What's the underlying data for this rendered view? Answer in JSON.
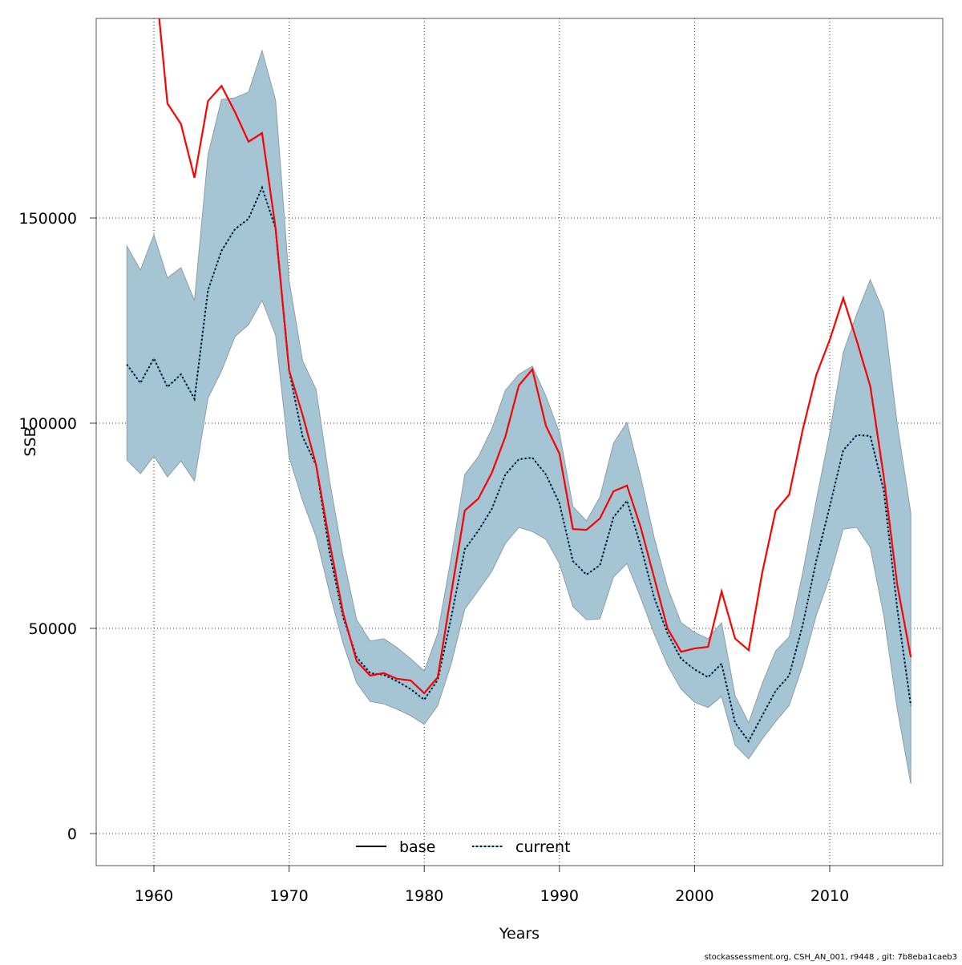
{
  "chart_data": {
    "type": "line",
    "xlabel": "Years",
    "ylabel": "SSB",
    "xlim": [
      1956,
      2018
    ],
    "ylim": [
      -7500,
      198700
    ],
    "grid": true,
    "legend_placement": "bottom",
    "x_ticks": [
      1960,
      1970,
      1980,
      1990,
      2000,
      2010
    ],
    "y_ticks": [
      0,
      50000,
      100000,
      150000
    ],
    "x_tick_labels": [
      "1960",
      "1970",
      "1980",
      "1990",
      "2000",
      "2010"
    ],
    "y_tick_labels": [
      "0",
      "50000",
      "100000",
      "150000"
    ],
    "colors": {
      "band": "#a5c4d4",
      "band_edge": "#8f9ea6",
      "base": "#ff0000",
      "current": "#000000",
      "current_under": "#6fb7dd"
    },
    "legend": [
      {
        "name": "base",
        "style": "solid"
      },
      {
        "name": "current",
        "style": "dotted"
      }
    ],
    "band": {
      "x": [
        1958,
        1959,
        1960,
        1961,
        1962,
        1963,
        1964,
        1965,
        1966,
        1967,
        1968,
        1969,
        1970,
        1971,
        1972,
        1973,
        1974,
        1975,
        1976,
        1977,
        1978,
        1979,
        1980,
        1981,
        1982,
        1983,
        1984,
        1985,
        1986,
        1987,
        1988,
        1989,
        1990,
        1991,
        1992,
        1993,
        1994,
        1995,
        1996,
        1997,
        1998,
        1999,
        2000,
        2001,
        2002,
        2003,
        2004,
        2005,
        2006,
        2007,
        2008,
        2009,
        2010,
        2011,
        2012,
        2013,
        2014,
        2015,
        2016
      ],
      "upper": [
        143200,
        137300,
        145900,
        135400,
        137900,
        129900,
        165400,
        178900,
        179300,
        180700,
        190800,
        178700,
        134800,
        115200,
        108200,
        85900,
        67400,
        52100,
        46900,
        47500,
        45300,
        42600,
        39600,
        48800,
        67400,
        87500,
        91800,
        98600,
        108000,
        111900,
        113900,
        106600,
        97700,
        79700,
        76200,
        82000,
        95100,
        100200,
        87100,
        72300,
        60000,
        51400,
        49000,
        47500,
        51400,
        33600,
        27000,
        36500,
        44500,
        47900,
        63500,
        81100,
        97700,
        117200,
        126600,
        135000,
        127000,
        99600,
        78100
      ],
      "lower": [
        91000,
        87700,
        92000,
        86900,
        90800,
        85900,
        106100,
        112700,
        121100,
        124000,
        129900,
        121500,
        91800,
        81100,
        72300,
        58600,
        46300,
        36700,
        32200,
        31600,
        30300,
        28700,
        26600,
        31200,
        41400,
        54700,
        59200,
        63900,
        70700,
        74600,
        73600,
        71700,
        65800,
        55300,
        52100,
        52300,
        62500,
        65800,
        57600,
        48800,
        41000,
        35200,
        32000,
        30700,
        33400,
        21500,
        18200,
        23000,
        27300,
        31200,
        41000,
        53100,
        62500,
        74200,
        74600,
        69700,
        53100,
        30300,
        12100
      ]
    },
    "series": [
      {
        "name": "current",
        "x": [
          1958,
          1959,
          1960,
          1961,
          1962,
          1963,
          1964,
          1965,
          1966,
          1967,
          1968,
          1969,
          1970,
          1971,
          1972,
          1973,
          1974,
          1975,
          1976,
          1977,
          1978,
          1979,
          1980,
          1981,
          1982,
          1983,
          1984,
          1985,
          1986,
          1987,
          1988,
          1989,
          1990,
          1991,
          1992,
          1993,
          1994,
          1995,
          1996,
          1997,
          1998,
          1999,
          2000,
          2001,
          2002,
          2003,
          2004,
          2005,
          2006,
          2007,
          2008,
          2009,
          2010,
          2011,
          2012,
          2013,
          2014,
          2015,
          2016
        ],
        "values": [
          114300,
          109800,
          115800,
          108800,
          111900,
          105900,
          132400,
          142000,
          147300,
          149800,
          157400,
          147500,
          112900,
          96700,
          89800,
          68400,
          52700,
          43000,
          39100,
          38700,
          37100,
          35200,
          32600,
          37500,
          52700,
          69300,
          73800,
          79100,
          87500,
          91200,
          91600,
          87500,
          80500,
          66400,
          63100,
          65400,
          77100,
          81100,
          70300,
          57600,
          48800,
          42600,
          40000,
          38100,
          41400,
          27000,
          22500,
          28700,
          34800,
          38500,
          50800,
          66400,
          79700,
          93400,
          97100,
          96900,
          83600,
          54700,
          31200
        ]
      },
      {
        "name": "base",
        "x": [
          1960,
          1961,
          1962,
          1963,
          1964,
          1965,
          1966,
          1967,
          1968,
          1969,
          1970,
          1971,
          1972,
          1973,
          1974,
          1975,
          1976,
          1977,
          1978,
          1979,
          1980,
          1981,
          1982,
          1983,
          1984,
          1985,
          1986,
          1987,
          1988,
          1989,
          1990,
          1991,
          1992,
          1993,
          1994,
          1995,
          1996,
          1997,
          1998,
          1999,
          2000,
          2001,
          2002,
          2003,
          2004,
          2005,
          2006,
          2007,
          2008,
          2009,
          2010,
          2011,
          2012,
          2013,
          2014,
          2015,
          2016
        ],
        "values": [
          212000,
          177900,
          172900,
          159800,
          178500,
          182200,
          175800,
          168600,
          170700,
          147500,
          112900,
          102000,
          89800,
          70900,
          53700,
          42000,
          38500,
          39100,
          37700,
          37300,
          34200,
          38100,
          58600,
          78700,
          81600,
          87900,
          96700,
          109200,
          113100,
          99400,
          92600,
          74200,
          74000,
          76800,
          83400,
          84800,
          74800,
          62500,
          50000,
          44300,
          45100,
          45500,
          59000,
          47500,
          44700,
          63500,
          78700,
          82600,
          98400,
          111700,
          120300,
          130500,
          120100,
          109000,
          86900,
          60500,
          43000
        ]
      }
    ]
  },
  "footer": "stockassessment.org, CSH_AN_001, r9448 , git: 7b8eba1caeb3"
}
